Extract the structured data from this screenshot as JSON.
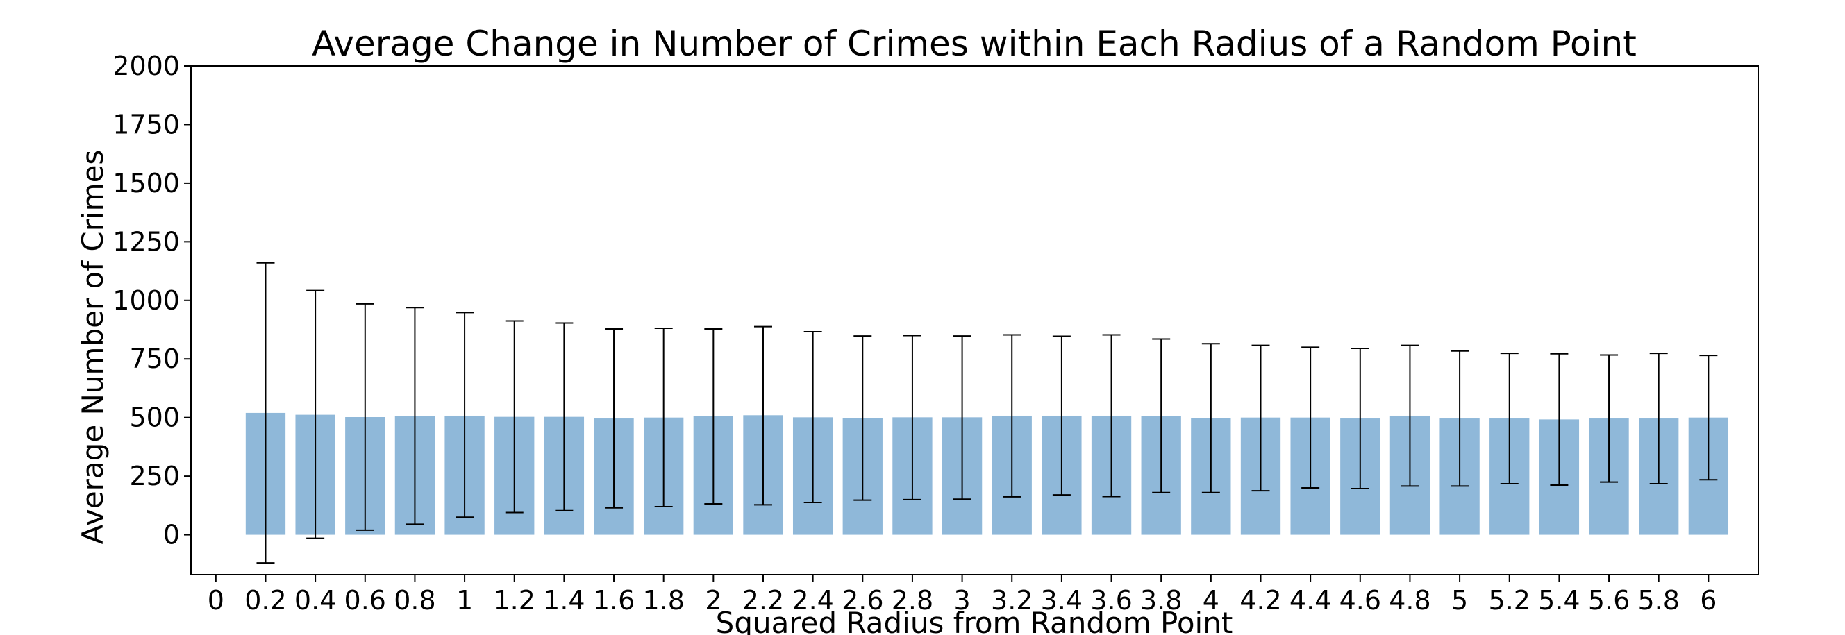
{
  "chart_data": {
    "type": "bar",
    "title": "Average Change in Number of Crimes within Each Radius of a Random Point",
    "xlabel": "Squared Radius from Random Point",
    "ylabel": "Average Number of Crimes",
    "ylim": [
      -170,
      2000
    ],
    "yticks": [
      0,
      250,
      500,
      750,
      1000,
      1250,
      1500,
      1750,
      2000
    ],
    "xticks": [
      "0",
      "0.2",
      "0.4",
      "0.6",
      "0.8",
      "1",
      "1.2",
      "1.4",
      "1.6",
      "1.8",
      "2",
      "2.2",
      "2.4",
      "2.6",
      "2.8",
      "3",
      "3.2",
      "3.4",
      "3.6",
      "3.8",
      "4",
      "4.2",
      "4.4",
      "4.6",
      "4.8",
      "5",
      "5.2",
      "5.4",
      "5.6",
      "5.8",
      "6"
    ],
    "categories": [
      "0.2",
      "0.4",
      "0.6",
      "0.8",
      "1",
      "1.2",
      "1.4",
      "1.6",
      "1.8",
      "2",
      "2.2",
      "2.4",
      "2.6",
      "2.8",
      "3",
      "3.2",
      "3.4",
      "3.6",
      "3.8",
      "4",
      "4.2",
      "4.4",
      "4.6",
      "4.8",
      "5",
      "5.2",
      "5.4",
      "5.6",
      "5.8",
      "6"
    ],
    "values": [
      520,
      512,
      502,
      507,
      508,
      503,
      503,
      496,
      500,
      505,
      510,
      501,
      497,
      501,
      501,
      508,
      508,
      508,
      507,
      497,
      500,
      500,
      496,
      508,
      496,
      496,
      492,
      496,
      496,
      500
    ],
    "error_upper": [
      1160,
      1042,
      985,
      969,
      948,
      912,
      903,
      878,
      881,
      878,
      888,
      866,
      848,
      850,
      848,
      853,
      847,
      853,
      835,
      815,
      808,
      800,
      795,
      808,
      784,
      774,
      772,
      767,
      774,
      765
    ],
    "error_lower": [
      -120,
      -15,
      20,
      45,
      75,
      95,
      103,
      115,
      120,
      132,
      128,
      138,
      148,
      150,
      152,
      162,
      170,
      163,
      180,
      180,
      188,
      200,
      197,
      208,
      208,
      218,
      212,
      225,
      218,
      235
    ],
    "bar_color": "#8fb8d9",
    "errorbar_color": "#000000",
    "grid": false,
    "legend": false
  }
}
